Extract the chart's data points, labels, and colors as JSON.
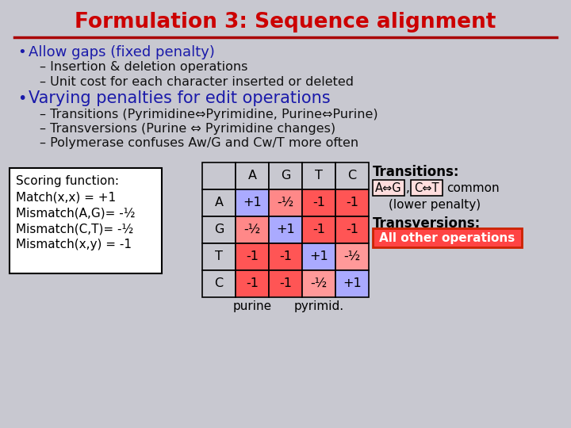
{
  "title": "Formulation 3: Sequence alignment",
  "title_color": "#cc0000",
  "bg_color": "#c8c8d0",
  "bullet1": "Allow gaps (fixed penalty)",
  "bullet1_color": "#1a1aaa",
  "sub1a": "Insertion & deletion operations",
  "sub1b": "Unit cost for each character inserted or deleted",
  "bullet2": "Varying penalties for edit operations",
  "bullet2_color": "#1a1aaa",
  "sub2a": "Transitions (Pyrimidine⇔Pyrimidine, Purine⇔Purine)",
  "sub2b": "Transversions (Purine ⇔ Pyrimidine changes)",
  "sub2c": "Polymerase confuses Aw/G and Cw/T more often",
  "scoring_lines": [
    "Scoring function:",
    "Match(x,x) = +1",
    "Mismatch(A,G)= -½",
    "Mismatch(C,T)= -½",
    "Mismatch(x,y) = -1"
  ],
  "matrix_headers": [
    "",
    "A",
    "G",
    "T",
    "C"
  ],
  "matrix_rows": [
    [
      "A",
      "+1",
      "-½",
      "-1",
      "-1"
    ],
    [
      "G",
      "-½",
      "+1",
      "-1",
      "-1"
    ],
    [
      "T",
      "-1",
      "-1",
      "+1",
      "-½"
    ],
    [
      "C",
      "-1",
      "-1",
      "-½",
      "+1"
    ]
  ],
  "cell_colors": [
    [
      "#c8c8d0",
      "#aaaaff",
      "#ff8888",
      "#ff5555",
      "#ff5555"
    ],
    [
      "#c8c8d0",
      "#ff8888",
      "#aaaaff",
      "#ff5555",
      "#ff5555"
    ],
    [
      "#c8c8d0",
      "#ff5555",
      "#ff5555",
      "#aaaaff",
      "#ff9999"
    ],
    [
      "#c8c8d0",
      "#ff5555",
      "#ff5555",
      "#ff9999",
      "#aaaaff"
    ]
  ],
  "header_colors": [
    "#c8c8d0",
    "#c8c8d0",
    "#c8c8d0",
    "#c8c8d0",
    "#c8c8d0"
  ],
  "purine_label": "purine",
  "pyrimid_label": "pyrimid.",
  "transitions_text": "Transitions:",
  "transitions_detail1": "A⇔G",
  "transitions_detail2": "C⇔T",
  "transitions_common": "common",
  "transitions_lower": "(lower penalty)",
  "transversions_text": "Transversions:",
  "transversions_detail": "All other operations",
  "trans_box1_color": "#ffdddd",
  "trans_box2_color": "#ff4444",
  "text_dark": "#111111",
  "text_black": "#000000"
}
